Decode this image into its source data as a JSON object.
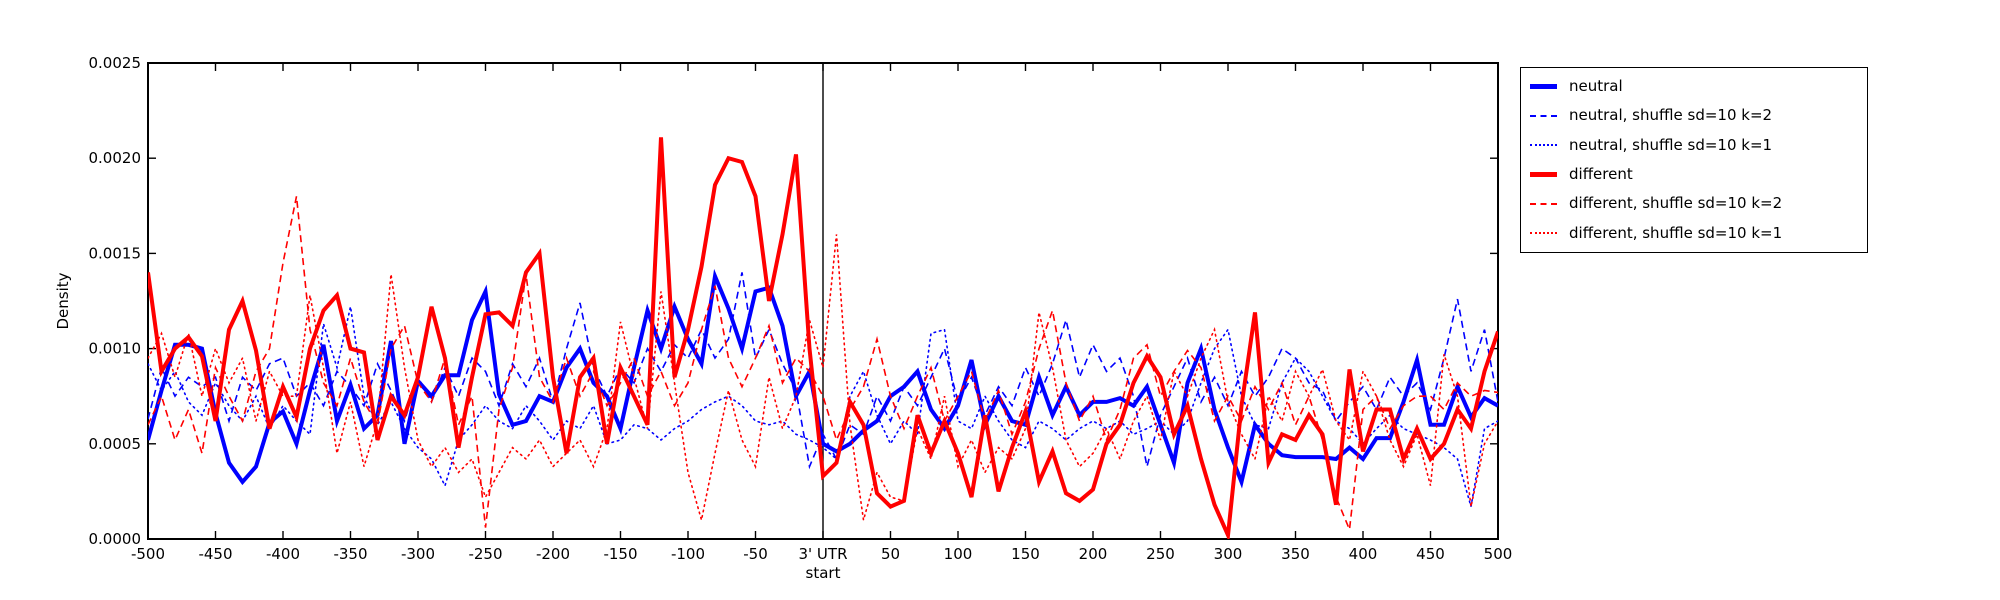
{
  "figure": {
    "background_color": "#ffffff",
    "axis_color": "#000000",
    "accent_blue": "#0000ff",
    "accent_red": "#ff0000"
  },
  "chart_data": {
    "type": "line",
    "title": "",
    "ylabel": "Density",
    "xlabel": "start",
    "legend_position": "outside-upper-right",
    "grid": false,
    "x_axis": {
      "min": -500,
      "max": 500,
      "tick_step": 50,
      "zero_tick_label": "3' UTR"
    },
    "y_axis": {
      "min": 0.0,
      "max": 0.0025,
      "tick_step": 0.0005
    },
    "x_tick_labels": [
      "-500",
      "-450",
      "-400",
      "-350",
      "-300",
      "-250",
      "-200",
      "-150",
      "-100",
      "-50",
      "3' UTR",
      "50",
      "100",
      "150",
      "200",
      "250",
      "300",
      "350",
      "400",
      "450",
      "500"
    ],
    "y_tick_labels": [
      "0.0000",
      "0.0005",
      "0.0010",
      "0.0015",
      "0.0020",
      "0.0025"
    ],
    "vline_x": 0,
    "x_start": -500,
    "x_step": 10,
    "value_scale": 0.0001,
    "series": [
      {
        "name": "neutral",
        "color": "#0000ff",
        "style": "solid",
        "width": 4,
        "values": [
          5.2,
          7.8,
          10.2,
          10.2,
          10.0,
          6.6,
          4.0,
          3.0,
          3.8,
          6.1,
          6.7,
          5.0,
          7.8,
          10.2,
          6.2,
          8.1,
          5.8,
          6.5,
          10.4,
          5.0,
          8.3,
          7.5,
          8.6,
          8.6,
          11.5,
          13.0,
          7.6,
          6.0,
          6.2,
          7.5,
          7.2,
          9.0,
          10.0,
          8.2,
          7.5,
          5.8,
          9.0,
          12.0,
          10.0,
          12.2,
          10.5,
          9.2,
          13.8,
          12.1,
          10.0,
          13.0,
          13.2,
          11.2,
          7.5,
          8.8,
          5.0,
          4.6,
          5.0,
          5.7,
          6.2,
          7.5,
          8.0,
          8.8,
          6.8,
          5.8,
          7.0,
          9.4,
          6.0,
          7.5,
          6.2,
          6.0,
          8.5,
          6.5,
          8.0,
          6.5,
          7.2,
          7.2,
          7.4,
          7.0,
          8.0,
          6.0,
          4.0,
          8.2,
          10.0,
          6.8,
          4.8,
          3.0,
          6.0,
          5.0,
          4.4,
          4.3,
          4.3,
          4.3,
          4.2,
          4.8,
          4.2,
          5.3,
          5.3,
          7.2,
          9.4,
          6.0,
          6.0,
          8.0,
          6.4,
          7.4,
          7.0
        ]
      },
      {
        "name": "neutral, shuffle sd=10 k=2",
        "color": "#0000ff",
        "style": "dashed",
        "width": 1.6,
        "values": [
          6.3,
          9.0,
          7.5,
          8.5,
          8.0,
          8.5,
          6.2,
          8.5,
          7.8,
          9.2,
          9.5,
          7.5,
          8.2,
          7.0,
          8.8,
          8.0,
          7.0,
          9.2,
          7.8,
          6.2,
          8.5,
          7.2,
          9.0,
          7.5,
          9.5,
          8.8,
          7.0,
          9.2,
          8.0,
          9.5,
          7.2,
          10.0,
          12.4,
          9.0,
          7.5,
          9.0,
          8.2,
          10.0,
          8.8,
          10.2,
          9.5,
          11.0,
          9.5,
          10.5,
          14.0,
          9.5,
          11.0,
          9.2,
          7.8,
          3.8,
          5.5,
          4.2,
          6.0,
          5.5,
          7.5,
          6.2,
          8.0,
          7.0,
          8.5,
          10.0,
          7.2,
          8.5,
          6.5,
          8.0,
          7.0,
          9.0,
          7.5,
          9.2,
          11.5,
          8.5,
          10.2,
          8.8,
          9.5,
          7.5,
          3.8,
          6.5,
          8.0,
          9.5,
          7.2,
          8.5,
          7.0,
          8.8,
          7.5,
          8.5,
          10.0,
          9.5,
          8.2,
          7.8,
          6.2,
          7.2,
          8.0,
          6.8,
          8.5,
          7.5,
          8.2,
          6.8,
          9.5,
          12.6,
          8.8,
          11.0,
          7.2
        ]
      },
      {
        "name": "neutral, shuffle sd=10 k=1",
        "color": "#0000ff",
        "style": "dotted",
        "width": 1.6,
        "values": [
          9.2,
          7.8,
          8.8,
          7.2,
          6.5,
          8.2,
          7.0,
          6.2,
          7.5,
          5.8,
          7.0,
          6.2,
          5.5,
          11.3,
          9.0,
          12.2,
          7.5,
          6.0,
          7.2,
          5.8,
          4.8,
          4.2,
          2.8,
          5.2,
          6.0,
          7.0,
          6.2,
          5.8,
          7.0,
          6.2,
          5.2,
          6.2,
          5.8,
          7.0,
          5.0,
          5.2,
          6.0,
          5.8,
          5.2,
          5.8,
          6.2,
          6.8,
          7.2,
          7.5,
          7.0,
          6.2,
          6.0,
          6.2,
          5.5,
          5.2,
          4.8,
          4.2,
          7.5,
          8.8,
          6.5,
          5.0,
          6.2,
          5.5,
          10.8,
          11.0,
          6.2,
          5.8,
          7.5,
          6.2,
          5.2,
          4.8,
          6.2,
          5.8,
          5.2,
          5.8,
          6.2,
          5.8,
          6.2,
          5.5,
          5.8,
          6.2,
          5.5,
          6.2,
          8.2,
          10.0,
          11.0,
          7.5,
          6.0,
          5.8,
          8.2,
          9.5,
          8.8,
          7.5,
          6.2,
          5.8,
          5.0,
          5.8,
          6.5,
          5.8,
          5.5,
          5.2,
          4.8,
          4.2,
          1.7,
          5.8,
          6.2
        ]
      },
      {
        "name": "different",
        "color": "#ff0000",
        "style": "solid",
        "width": 4,
        "values": [
          14.0,
          8.8,
          10.0,
          10.6,
          9.6,
          6.2,
          11.0,
          12.5,
          9.9,
          5.8,
          8.0,
          6.4,
          10.0,
          12.0,
          12.8,
          10.0,
          9.8,
          5.2,
          7.5,
          6.5,
          8.5,
          12.2,
          9.5,
          4.8,
          8.5,
          11.8,
          11.9,
          11.2,
          14.0,
          15.0,
          8.5,
          4.5,
          8.5,
          9.5,
          5.0,
          9.0,
          7.5,
          6.0,
          21.1,
          8.5,
          11.0,
          14.3,
          18.6,
          20.0,
          19.8,
          18.0,
          12.5,
          16.0,
          20.2,
          10.0,
          3.3,
          4.0,
          7.2,
          6.0,
          2.4,
          1.7,
          2.0,
          6.5,
          4.5,
          6.2,
          4.5,
          2.2,
          6.5,
          2.5,
          4.8,
          6.7,
          3.0,
          4.6,
          2.4,
          2.0,
          2.6,
          5.0,
          6.0,
          8.2,
          9.6,
          8.5,
          5.5,
          7.0,
          4.2,
          1.8,
          0.2,
          7.0,
          11.9,
          4.0,
          5.5,
          5.2,
          6.5,
          5.5,
          1.8,
          8.9,
          4.6,
          6.8,
          6.8,
          4.2,
          5.8,
          4.2,
          5.0,
          6.8,
          5.8,
          8.8,
          10.9
        ]
      },
      {
        "name": "different, shuffle sd=10 k=2",
        "color": "#ff0000",
        "style": "dashed",
        "width": 1.6,
        "values": [
          6.0,
          7.5,
          5.2,
          6.8,
          4.5,
          9.0,
          7.5,
          6.2,
          8.8,
          10.0,
          14.5,
          18.0,
          11.0,
          8.2,
          7.0,
          9.5,
          7.2,
          6.0,
          10.0,
          11.2,
          8.2,
          7.2,
          9.5,
          6.0,
          7.5,
          0.6,
          6.8,
          9.0,
          13.9,
          8.5,
          7.2,
          9.5,
          7.5,
          8.8,
          7.0,
          8.2,
          9.5,
          7.5,
          8.8,
          7.0,
          8.2,
          11.0,
          13.3,
          9.5,
          8.0,
          9.5,
          11.2,
          8.2,
          9.5,
          8.8,
          7.5,
          5.2,
          6.8,
          8.0,
          10.5,
          7.5,
          5.8,
          7.5,
          9.0,
          6.2,
          7.5,
          8.8,
          6.2,
          7.8,
          5.5,
          7.2,
          10.0,
          12.0,
          8.2,
          6.2,
          7.5,
          5.2,
          6.8,
          9.5,
          10.2,
          7.5,
          8.8,
          9.9,
          9.0,
          6.2,
          7.5,
          6.2,
          8.0,
          6.8,
          8.2,
          6.0,
          7.5,
          5.2,
          2.2,
          0.5,
          6.8,
          7.5,
          5.8,
          7.0,
          7.5,
          7.5,
          6.8,
          8.2,
          7.5,
          7.8,
          7.7
        ]
      },
      {
        "name": "different, shuffle sd=10 k=1",
        "color": "#ff0000",
        "style": "dotted",
        "width": 1.6,
        "values": [
          9.5,
          10.8,
          8.5,
          10.8,
          7.5,
          10.0,
          8.2,
          9.5,
          6.2,
          8.8,
          7.5,
          7.5,
          12.8,
          9.0,
          4.5,
          7.2,
          3.8,
          6.2,
          13.9,
          9.0,
          5.2,
          3.8,
          4.8,
          3.5,
          4.2,
          2.2,
          3.5,
          4.8,
          4.2,
          5.2,
          3.8,
          4.5,
          5.2,
          3.8,
          5.8,
          11.4,
          8.5,
          5.8,
          13.0,
          8.2,
          3.5,
          1.0,
          4.5,
          7.8,
          5.2,
          3.8,
          8.5,
          5.8,
          7.5,
          11.5,
          9.0,
          16.0,
          6.0,
          1.0,
          3.5,
          2.2,
          2.0,
          5.8,
          4.2,
          7.5,
          3.8,
          5.2,
          3.5,
          4.8,
          4.2,
          5.8,
          11.9,
          9.0,
          5.2,
          3.8,
          4.5,
          5.8,
          4.2,
          6.2,
          7.5,
          5.2,
          8.8,
          7.5,
          9.5,
          11.0,
          7.2,
          5.5,
          4.2,
          7.5,
          6.2,
          8.8,
          7.5,
          8.9,
          6.2,
          5.2,
          8.8,
          7.5,
          5.2,
          3.8,
          5.5,
          2.8,
          9.7,
          7.5,
          1.7,
          5.0,
          6.2
        ]
      }
    ]
  }
}
